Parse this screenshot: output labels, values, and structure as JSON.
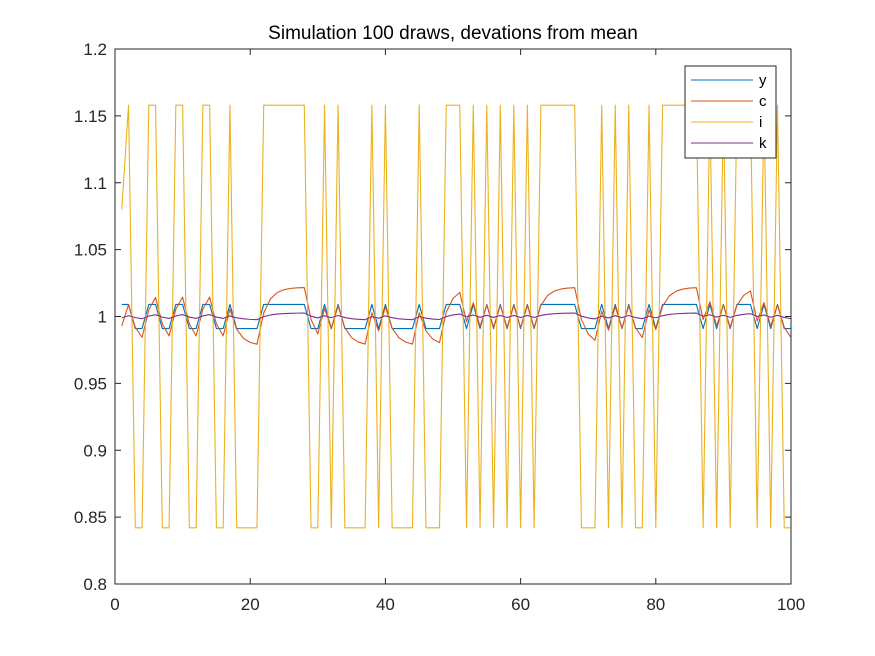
{
  "chart_data": {
    "type": "line",
    "title": "Simulation 100 draws, devations from mean",
    "xlabel": "",
    "ylabel": "",
    "xlim": [
      0,
      100
    ],
    "ylim": [
      0.8,
      1.2
    ],
    "xticks": [
      0,
      20,
      40,
      60,
      80,
      100
    ],
    "xtick_labels": [
      "0",
      "20",
      "40",
      "60",
      "80",
      "100"
    ],
    "yticks": [
      0.8,
      0.85,
      0.9,
      0.95,
      1.0,
      1.05,
      1.1,
      1.15,
      1.2
    ],
    "ytick_labels": [
      "0.8",
      "0.85",
      "0.9",
      "0.95",
      "1",
      "1.05",
      "1.1",
      "1.15",
      "1.2"
    ],
    "grid": false,
    "legend_position": "top-right",
    "shocks": [
      1,
      1,
      -1,
      -1,
      1,
      1,
      -1,
      -1,
      1,
      1,
      -1,
      -1,
      1,
      1,
      -1,
      -1,
      1,
      -1,
      -1,
      -1,
      -1,
      1,
      1,
      1,
      1,
      1,
      1,
      1,
      -1,
      -1,
      1,
      -1,
      1,
      -1,
      -1,
      -1,
      -1,
      1,
      -1,
      1,
      -1,
      -1,
      -1,
      -1,
      1,
      -1,
      -1,
      -1,
      1,
      1,
      1,
      -1,
      1,
      -1,
      1,
      -1,
      1,
      -1,
      1,
      -1,
      1,
      -1,
      1,
      1,
      1,
      1,
      1,
      1,
      -1,
      -1,
      -1,
      1,
      -1,
      1,
      -1,
      1,
      -1,
      -1,
      1,
      -1,
      1,
      1,
      1,
      1,
      1,
      1,
      -1,
      1,
      -1,
      1,
      -1,
      1,
      1,
      1,
      -1,
      1,
      -1,
      1,
      -1,
      -1
    ],
    "series": [
      {
        "name": "y",
        "color": "#0072BD",
        "amp": 0.009,
        "rho": 0.0,
        "start": 1.009
      },
      {
        "name": "c",
        "color": "#D95319",
        "amp": 0.012,
        "rho": 0.45,
        "start": 0.993
      },
      {
        "name": "i",
        "color": "#EDB120",
        "amp": 0.158,
        "rho": 0.0,
        "start": 1.08
      },
      {
        "name": "k",
        "color": "#7E2F8E",
        "amp": 0.0012,
        "rho": 0.55,
        "start": 0.999
      }
    ]
  }
}
